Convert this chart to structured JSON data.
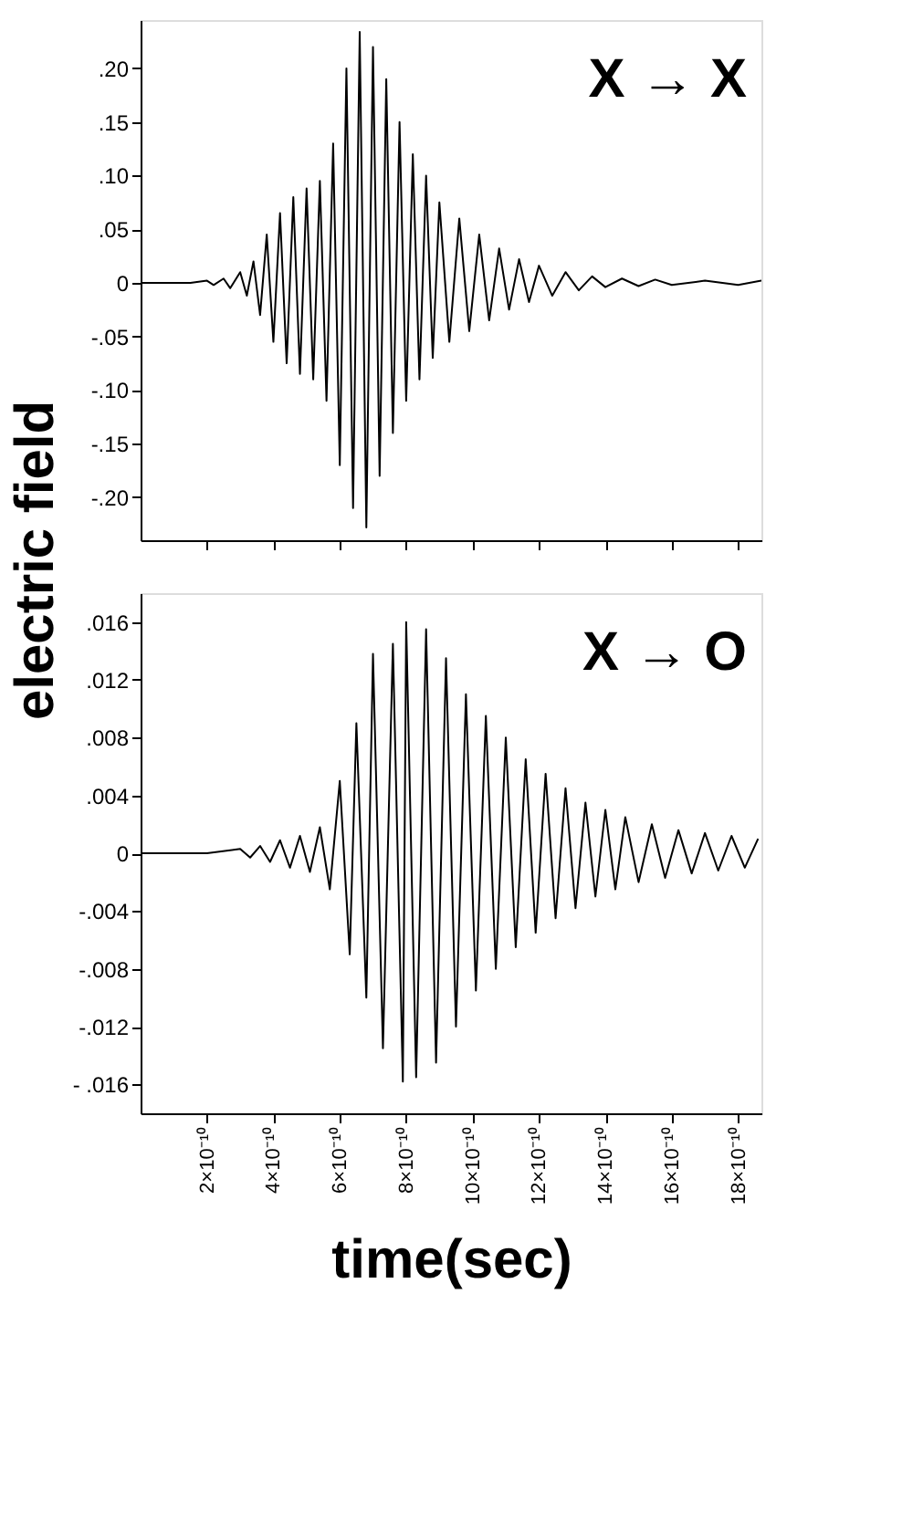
{
  "chart_data": [
    {
      "type": "line",
      "ylabel": "electric field",
      "annotations": [
        "X → X"
      ],
      "tick_labels": "y",
      "line_style": "solid",
      "xlim": [
        0,
        1.87e-09
      ],
      "xticks": [
        {
          "value": 2e-10,
          "label": null
        },
        {
          "value": 4e-10,
          "label": null
        },
        {
          "value": 6e-10,
          "label": null
        },
        {
          "value": 8e-10,
          "label": null
        },
        {
          "value": 1e-09,
          "label": null
        },
        {
          "value": 1.2e-09,
          "label": null
        },
        {
          "value": 1.4e-09,
          "label": null
        },
        {
          "value": 1.6e-09,
          "label": null
        },
        {
          "value": 1.8e-09,
          "label": null
        }
      ],
      "ylim": [
        -0.24,
        0.245
      ],
      "yticks": [
        {
          "value": 0.2,
          "label": ".20"
        },
        {
          "value": 0.15,
          "label": ".15"
        },
        {
          "value": 0.1,
          "label": ".10"
        },
        {
          "value": 0.05,
          "label": ".05"
        },
        0,
        {
          "value": -0.05,
          "label": "-.05"
        },
        {
          "value": -0.1,
          "label": "-.10"
        },
        {
          "value": -0.15,
          "label": "-.15"
        },
        {
          "value": -0.2,
          "label": "-.20"
        }
      ],
      "series": [
        {
          "color": "#000000",
          "x": [
            0,
            1.5e-10,
            2e-10,
            2.2e-10,
            2.5e-10,
            2.7e-10,
            3e-10,
            3.2e-10,
            3.4e-10,
            3.6e-10,
            3.8e-10,
            4e-10,
            4.2e-10,
            4.4e-10,
            4.6e-10,
            4.8e-10,
            5e-10,
            5.2e-10,
            5.4e-10,
            5.6e-10,
            5.8e-10,
            6e-10,
            6.2e-10,
            6.4e-10,
            6.6e-10,
            6.8e-10,
            7e-10,
            7.2e-10,
            7.4e-10,
            7.6e-10,
            7.8e-10,
            8e-10,
            8.2e-10,
            8.4e-10,
            8.6e-10,
            8.8e-10,
            9e-10,
            9.3e-10,
            9.6e-10,
            9.9e-10,
            1.02e-09,
            1.05e-09,
            1.08e-09,
            1.11e-09,
            1.14e-09,
            1.17e-09,
            1.2e-09,
            1.24e-09,
            1.28e-09,
            1.32e-09,
            1.36e-09,
            1.4e-09,
            1.45e-09,
            1.5e-09,
            1.55e-09,
            1.6e-09,
            1.7e-09,
            1.8e-09,
            1.87e-09
          ],
          "values": [
            0,
            0,
            0.002,
            -0.002,
            0.004,
            -0.005,
            0.01,
            -0.012,
            0.02,
            -0.03,
            0.045,
            -0.055,
            0.065,
            -0.075,
            0.08,
            -0.085,
            0.088,
            -0.09,
            0.095,
            -0.11,
            0.13,
            -0.17,
            0.2,
            -0.21,
            0.234,
            -0.228,
            0.22,
            -0.18,
            0.19,
            -0.14,
            0.15,
            -0.11,
            0.12,
            -0.09,
            0.1,
            -0.07,
            0.075,
            -0.055,
            0.06,
            -0.045,
            0.045,
            -0.035,
            0.032,
            -0.025,
            0.022,
            -0.018,
            0.016,
            -0.012,
            0.01,
            -0.007,
            0.006,
            -0.004,
            0.004,
            -0.003,
            0.003,
            -0.002,
            0.002,
            -0.002,
            0.002
          ]
        }
      ]
    },
    {
      "type": "line",
      "xlabel": "time(sec)",
      "annotations": [
        "X → O"
      ],
      "line_style": "solid",
      "xlim": [
        0,
        1.87e-09
      ],
      "xticks": [
        {
          "value": 2e-10,
          "label": "2×10⁻¹⁰"
        },
        {
          "value": 4e-10,
          "label": "4×10⁻¹⁰"
        },
        {
          "value": 6e-10,
          "label": "6×10⁻¹⁰"
        },
        {
          "value": 8e-10,
          "label": "8×10⁻¹⁰"
        },
        {
          "value": 1e-09,
          "label": "10×10⁻¹⁰"
        },
        {
          "value": 1.2e-09,
          "label": "12×10⁻¹⁰"
        },
        {
          "value": 1.4e-09,
          "label": "14×10⁻¹⁰"
        },
        {
          "value": 1.6e-09,
          "label": "16×10⁻¹⁰"
        },
        {
          "value": 1.8e-09,
          "label": "18×10⁻¹⁰"
        }
      ],
      "ylim": [
        -0.018,
        0.018
      ],
      "yticks": [
        {
          "value": 0.016,
          "label": ".016"
        },
        {
          "value": 0.012,
          "label": ".012"
        },
        {
          "value": 0.008,
          "label": ".008"
        },
        {
          "value": 0.004,
          "label": ".004"
        },
        0,
        {
          "value": -0.004,
          "label": "-.004"
        },
        {
          "value": -0.008,
          "label": "-.008"
        },
        {
          "value": -0.012,
          "label": "-.012"
        },
        {
          "value": -0.016,
          "label": "- .016"
        }
      ],
      "series": [
        {
          "color": "#000000",
          "x": [
            0,
            2e-10,
            3e-10,
            3.3e-10,
            3.6e-10,
            3.9e-10,
            4.2e-10,
            4.5e-10,
            4.8e-10,
            5.1e-10,
            5.4e-10,
            5.7e-10,
            6e-10,
            6.3e-10,
            6.5e-10,
            6.8e-10,
            7e-10,
            7.3e-10,
            7.6e-10,
            7.9e-10,
            8e-10,
            8.3e-10,
            8.6e-10,
            8.9e-10,
            9.2e-10,
            9.5e-10,
            9.8e-10,
            1.01e-09,
            1.04e-09,
            1.07e-09,
            1.1e-09,
            1.13e-09,
            1.16e-09,
            1.19e-09,
            1.22e-09,
            1.25e-09,
            1.28e-09,
            1.31e-09,
            1.34e-09,
            1.37e-09,
            1.4e-09,
            1.43e-09,
            1.46e-09,
            1.5e-09,
            1.54e-09,
            1.58e-09,
            1.62e-09,
            1.66e-09,
            1.7e-09,
            1.74e-09,
            1.78e-09,
            1.82e-09,
            1.86e-09
          ],
          "values": [
            0,
            0,
            0.0003,
            -0.0003,
            0.0005,
            -0.0006,
            0.0009,
            -0.001,
            0.0012,
            -0.0013,
            0.0018,
            -0.0025,
            0.005,
            -0.007,
            0.009,
            -0.01,
            0.0138,
            -0.0135,
            0.0145,
            -0.0158,
            0.016,
            -0.0155,
            0.0155,
            -0.0145,
            0.0135,
            -0.012,
            0.011,
            -0.0095,
            0.0095,
            -0.008,
            0.008,
            -0.0065,
            0.0065,
            -0.0055,
            0.0055,
            -0.0045,
            0.0045,
            -0.0038,
            0.0035,
            -0.003,
            0.003,
            -0.0025,
            0.0025,
            -0.002,
            0.002,
            -0.0017,
            0.0016,
            -0.0014,
            0.0014,
            -0.0012,
            0.0012,
            -0.001,
            0.001
          ]
        }
      ]
    }
  ]
}
